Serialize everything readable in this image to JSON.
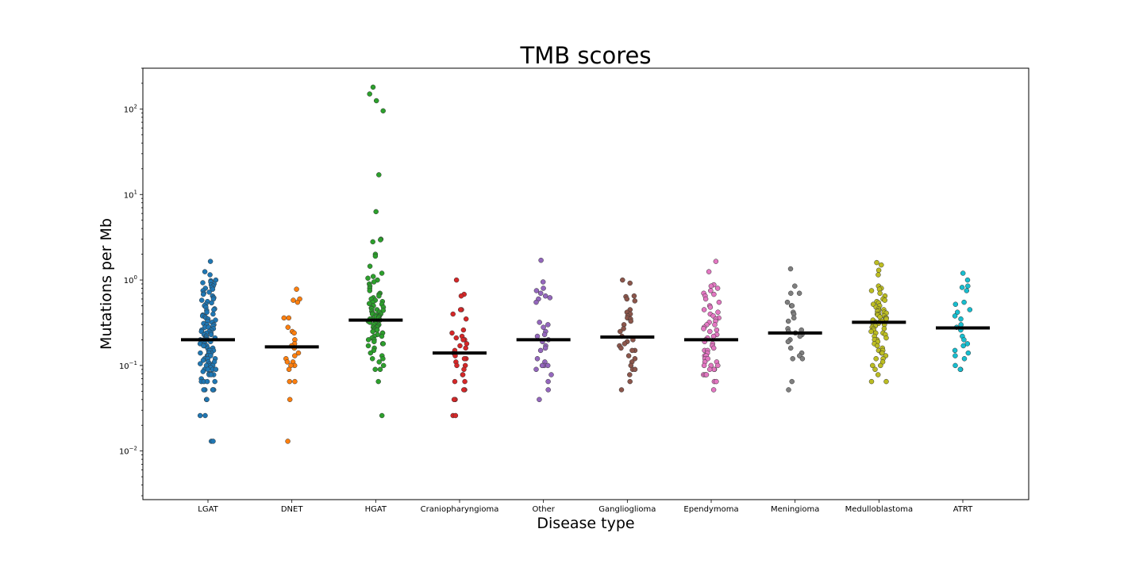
{
  "chart_data": {
    "type": "scatter",
    "title": "TMB scores",
    "xlabel": "Disease type",
    "ylabel": "Mutations per Mb",
    "yscale": "log",
    "ylim": [
      0.0027,
      300
    ],
    "y_ticks": [
      {
        "value": 0.01,
        "base": "10",
        "exp": "−2"
      },
      {
        "value": 0.1,
        "base": "10",
        "exp": "−1"
      },
      {
        "value": 1,
        "base": "10",
        "exp": "0"
      },
      {
        "value": 10,
        "base": "10",
        "exp": "1"
      },
      {
        "value": 100,
        "base": "10",
        "exp": "2"
      }
    ],
    "grid": false,
    "legend": "none",
    "median_line_color": "#000000",
    "categories": [
      "LGAT",
      "DNET",
      "HGAT",
      "Craniopharyngioma",
      "Other",
      "Ganglioglioma",
      "Ependymoma",
      "Meningioma",
      "Medulloblastoma",
      "ATRT"
    ],
    "series": [
      {
        "color": "#1f77b4",
        "median": 0.2,
        "values": [
          1.65,
          1.25,
          1.15,
          1.0,
          0.98,
          0.95,
          0.93,
          0.9,
          0.88,
          0.85,
          0.82,
          0.8,
          0.78,
          0.75,
          0.72,
          0.7,
          0.68,
          0.65,
          0.62,
          0.6,
          0.58,
          0.56,
          0.54,
          0.52,
          0.5,
          0.48,
          0.46,
          0.45,
          0.44,
          0.42,
          0.4,
          0.39,
          0.38,
          0.37,
          0.36,
          0.35,
          0.34,
          0.33,
          0.32,
          0.31,
          0.3,
          0.3,
          0.29,
          0.28,
          0.28,
          0.27,
          0.26,
          0.26,
          0.25,
          0.25,
          0.24,
          0.24,
          0.23,
          0.23,
          0.22,
          0.22,
          0.21,
          0.21,
          0.2,
          0.2,
          0.2,
          0.19,
          0.19,
          0.18,
          0.18,
          0.17,
          0.17,
          0.17,
          0.16,
          0.16,
          0.15,
          0.15,
          0.15,
          0.14,
          0.14,
          0.14,
          0.13,
          0.13,
          0.13,
          0.12,
          0.12,
          0.12,
          0.115,
          0.11,
          0.11,
          0.105,
          0.105,
          0.1,
          0.1,
          0.1,
          0.1,
          0.095,
          0.09,
          0.09,
          0.09,
          0.09,
          0.085,
          0.08,
          0.08,
          0.078,
          0.078,
          0.078,
          0.07,
          0.065,
          0.065,
          0.065,
          0.065,
          0.052,
          0.052,
          0.052,
          0.052,
          0.052,
          0.04,
          0.04,
          0.026,
          0.026,
          0.013,
          0.013
        ]
      },
      {
        "color": "#ff7f0e",
        "median": 0.165,
        "values": [
          0.78,
          0.6,
          0.58,
          0.55,
          0.36,
          0.36,
          0.28,
          0.25,
          0.24,
          0.2,
          0.18,
          0.17,
          0.16,
          0.14,
          0.13,
          0.12,
          0.11,
          0.11,
          0.1,
          0.1,
          0.09,
          0.065,
          0.065,
          0.04,
          0.013
        ]
      },
      {
        "color": "#2ca02c",
        "median": 0.34,
        "values": [
          180,
          150,
          125,
          95,
          17,
          6.3,
          3.0,
          2.95,
          2.8,
          2.0,
          1.9,
          1.45,
          1.2,
          1.1,
          1.05,
          1.0,
          0.95,
          0.9,
          0.85,
          0.8,
          0.75,
          0.7,
          0.68,
          0.65,
          0.62,
          0.6,
          0.58,
          0.56,
          0.55,
          0.53,
          0.52,
          0.5,
          0.48,
          0.47,
          0.46,
          0.45,
          0.44,
          0.43,
          0.42,
          0.41,
          0.4,
          0.4,
          0.39,
          0.38,
          0.37,
          0.37,
          0.36,
          0.35,
          0.35,
          0.34,
          0.33,
          0.32,
          0.32,
          0.31,
          0.3,
          0.3,
          0.29,
          0.28,
          0.28,
          0.27,
          0.26,
          0.26,
          0.25,
          0.24,
          0.24,
          0.23,
          0.22,
          0.22,
          0.21,
          0.2,
          0.2,
          0.19,
          0.18,
          0.18,
          0.17,
          0.16,
          0.15,
          0.14,
          0.13,
          0.12,
          0.12,
          0.11,
          0.1,
          0.09,
          0.09,
          0.065,
          0.026
        ]
      },
      {
        "color": "#d62728",
        "median": 0.14,
        "values": [
          1.0,
          0.68,
          0.65,
          0.45,
          0.45,
          0.4,
          0.35,
          0.26,
          0.24,
          0.22,
          0.21,
          0.2,
          0.2,
          0.18,
          0.17,
          0.16,
          0.15,
          0.14,
          0.13,
          0.12,
          0.12,
          0.11,
          0.1,
          0.1,
          0.09,
          0.078,
          0.078,
          0.065,
          0.065,
          0.052,
          0.052,
          0.04,
          0.04,
          0.026,
          0.026
        ]
      },
      {
        "color": "#9467bd",
        "median": 0.2,
        "values": [
          1.7,
          0.95,
          0.8,
          0.75,
          0.7,
          0.65,
          0.62,
          0.6,
          0.55,
          0.32,
          0.3,
          0.28,
          0.25,
          0.23,
          0.22,
          0.2,
          0.19,
          0.17,
          0.16,
          0.15,
          0.12,
          0.11,
          0.1,
          0.1,
          0.1,
          0.09,
          0.078,
          0.065,
          0.052,
          0.04
        ]
      },
      {
        "color": "#8c564b",
        "median": 0.215,
        "values": [
          1.0,
          0.92,
          0.65,
          0.64,
          0.6,
          0.57,
          0.45,
          0.42,
          0.4,
          0.38,
          0.36,
          0.35,
          0.33,
          0.3,
          0.27,
          0.25,
          0.22,
          0.2,
          0.19,
          0.18,
          0.17,
          0.16,
          0.15,
          0.15,
          0.13,
          0.12,
          0.11,
          0.1,
          0.09,
          0.09,
          0.078,
          0.065,
          0.052
        ]
      },
      {
        "color": "#e377c2",
        "median": 0.2,
        "values": [
          1.65,
          1.25,
          0.88,
          0.85,
          0.8,
          0.75,
          0.7,
          0.68,
          0.65,
          0.6,
          0.55,
          0.5,
          0.48,
          0.45,
          0.42,
          0.4,
          0.38,
          0.36,
          0.35,
          0.33,
          0.32,
          0.3,
          0.3,
          0.28,
          0.27,
          0.26,
          0.25,
          0.23,
          0.22,
          0.21,
          0.2,
          0.19,
          0.18,
          0.17,
          0.16,
          0.15,
          0.15,
          0.14,
          0.13,
          0.13,
          0.12,
          0.12,
          0.11,
          0.11,
          0.1,
          0.1,
          0.1,
          0.09,
          0.09,
          0.09,
          0.078,
          0.078,
          0.078,
          0.065,
          0.065,
          0.052
        ]
      },
      {
        "color": "#7f7f7f",
        "median": 0.24,
        "values": [
          1.35,
          0.85,
          0.7,
          0.7,
          0.55,
          0.5,
          0.5,
          0.42,
          0.4,
          0.36,
          0.33,
          0.27,
          0.26,
          0.25,
          0.24,
          0.23,
          0.22,
          0.2,
          0.19,
          0.16,
          0.14,
          0.13,
          0.12,
          0.12,
          0.065,
          0.052
        ]
      },
      {
        "color": "#bcbd22",
        "median": 0.32,
        "values": [
          1.6,
          1.5,
          1.3,
          1.15,
          0.85,
          0.8,
          0.78,
          0.75,
          0.7,
          0.65,
          0.6,
          0.58,
          0.56,
          0.54,
          0.52,
          0.5,
          0.48,
          0.46,
          0.45,
          0.44,
          0.43,
          0.42,
          0.41,
          0.4,
          0.4,
          0.39,
          0.38,
          0.37,
          0.36,
          0.36,
          0.35,
          0.34,
          0.33,
          0.33,
          0.32,
          0.31,
          0.3,
          0.3,
          0.29,
          0.28,
          0.27,
          0.27,
          0.26,
          0.25,
          0.24,
          0.24,
          0.23,
          0.22,
          0.21,
          0.2,
          0.2,
          0.19,
          0.18,
          0.17,
          0.16,
          0.15,
          0.15,
          0.14,
          0.14,
          0.13,
          0.12,
          0.12,
          0.11,
          0.1,
          0.1,
          0.09,
          0.078,
          0.065,
          0.065
        ]
      },
      {
        "color": "#17becf",
        "median": 0.275,
        "values": [
          1.2,
          1.0,
          0.85,
          0.82,
          0.75,
          0.55,
          0.52,
          0.45,
          0.42,
          0.38,
          0.35,
          0.3,
          0.28,
          0.26,
          0.22,
          0.2,
          0.18,
          0.17,
          0.15,
          0.14,
          0.13,
          0.12,
          0.1,
          0.09,
          0.09
        ]
      }
    ]
  }
}
